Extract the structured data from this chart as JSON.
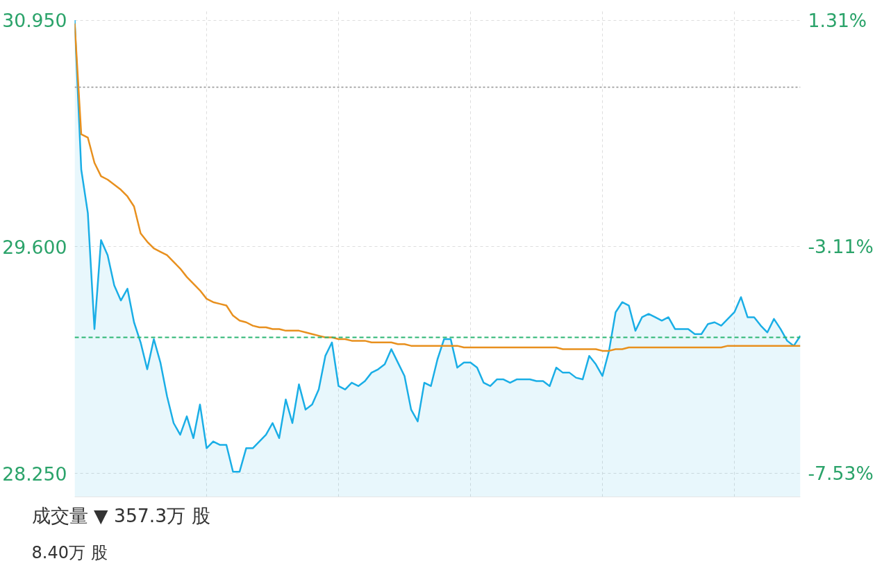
{
  "chart_data": [
    {
      "type": "line",
      "categories": [
        null,
        null,
        null,
        null,
        null,
        null,
        null,
        null,
        null,
        null,
        null,
        null,
        null,
        null,
        null,
        null,
        null,
        null,
        null,
        null,
        null,
        null,
        null,
        null,
        null,
        null,
        null,
        null,
        null,
        null,
        null,
        null,
        null,
        null,
        null,
        null,
        null,
        null,
        null,
        null,
        null,
        null,
        null,
        null,
        null,
        null,
        null,
        null,
        null,
        null,
        null,
        null,
        null,
        null,
        null,
        null,
        null,
        null,
        null,
        null,
        null,
        null,
        null,
        null,
        null,
        null,
        null,
        null,
        null,
        null,
        null,
        null,
        null,
        null,
        null,
        null,
        null,
        null,
        null,
        null,
        null,
        null,
        null,
        null,
        null,
        null,
        null,
        null,
        null,
        null,
        null,
        null,
        null,
        null,
        null,
        null,
        null,
        null,
        null,
        null,
        null,
        null,
        null,
        null,
        null,
        null,
        null,
        null,
        null,
        null,
        null
      ],
      "ylim": [
        28.11,
        31.01
      ],
      "yticks": [
        {
          "value": 30.95,
          "label": "30.950"
        },
        {
          "value": 29.6,
          "label": "29.600"
        },
        {
          "value": 28.25,
          "label": "28.250"
        }
      ],
      "y2lim": [
        -7.99,
        1.51
      ],
      "y2ticks": [
        {
          "value": 1.31,
          "label": "1.31%"
        },
        {
          "value": -3.11,
          "label": "-3.11%"
        },
        {
          "value": -7.53,
          "label": "-7.53%"
        }
      ],
      "grid": true,
      "ref_lines": [
        {
          "axis": "y",
          "value": 30.55,
          "label": null,
          "color": "#aaaaaa",
          "line_style": "dotted"
        },
        {
          "axis": "y",
          "value": 29.06,
          "label": null,
          "color": "#2bb673",
          "line_style": "dashed"
        }
      ],
      "series": [
        {
          "type": "area",
          "color": "#1aaee6",
          "values": [
            30.95,
            30.06,
            29.8,
            29.11,
            29.64,
            29.55,
            29.37,
            29.28,
            29.35,
            29.15,
            29.03,
            28.87,
            29.05,
            28.91,
            28.71,
            28.55,
            28.48,
            28.59,
            28.46,
            28.66,
            28.4,
            28.44,
            28.42,
            28.42,
            28.26,
            28.26,
            28.4,
            28.4,
            28.44,
            28.48,
            28.55,
            28.46,
            28.69,
            28.55,
            28.78,
            28.63,
            28.66,
            28.75,
            28.95,
            29.03,
            28.77,
            28.75,
            28.79,
            28.77,
            28.8,
            28.85,
            28.87,
            28.9,
            28.99,
            28.91,
            28.83,
            28.63,
            28.56,
            28.79,
            28.77,
            28.93,
            29.05,
            29.05,
            28.88,
            28.91,
            28.91,
            28.88,
            28.79,
            28.77,
            28.81,
            28.81,
            28.79,
            28.81,
            28.81,
            28.81,
            28.8,
            28.8,
            28.77,
            28.88,
            28.85,
            28.85,
            28.82,
            28.81,
            28.95,
            28.9,
            28.83,
            28.98,
            29.21,
            29.27,
            29.25,
            29.1,
            29.18,
            29.2,
            29.18,
            29.16,
            29.18,
            29.11,
            29.11,
            29.11,
            29.08,
            29.08,
            29.14,
            29.15,
            29.13,
            29.17,
            29.21,
            29.3,
            29.18,
            29.18,
            29.13,
            29.09,
            29.17,
            29.11,
            29.04,
            29.01,
            29.07
          ]
        },
        {
          "type": "line",
          "color": "#e8901e",
          "values": [
            30.93,
            30.27,
            30.25,
            30.1,
            30.02,
            30.0,
            29.97,
            29.94,
            29.9,
            29.84,
            29.68,
            29.63,
            29.59,
            29.57,
            29.55,
            29.51,
            29.47,
            29.42,
            29.38,
            29.34,
            29.29,
            29.27,
            29.26,
            29.25,
            29.19,
            29.16,
            29.15,
            29.13,
            29.12,
            29.12,
            29.11,
            29.11,
            29.1,
            29.1,
            29.1,
            29.09,
            29.08,
            29.07,
            29.06,
            29.06,
            29.05,
            29.05,
            29.04,
            29.04,
            29.04,
            29.03,
            29.03,
            29.03,
            29.03,
            29.02,
            29.02,
            29.01,
            29.01,
            29.01,
            29.01,
            29.01,
            29.01,
            29.01,
            29.01,
            29.0,
            29.0,
            29.0,
            29.0,
            29.0,
            29.0,
            29.0,
            29.0,
            29.0,
            29.0,
            29.0,
            29.0,
            29.0,
            29.0,
            29.0,
            28.99,
            28.99,
            28.99,
            28.99,
            28.99,
            28.99,
            28.98,
            28.98,
            28.99,
            28.99,
            29.0,
            29.0,
            29.0,
            29.0,
            29.0,
            29.0,
            29.0,
            29.0,
            29.0,
            29.0,
            29.0,
            29.0,
            29.0,
            29.0,
            29.0,
            29.01,
            29.01,
            29.01,
            29.01,
            29.01,
            29.01,
            29.01,
            29.01,
            29.01,
            29.01,
            29.01,
            29.01
          ]
        }
      ]
    },
    {
      "type": "other",
      "title": "成交量 ▼ 357.3万 股",
      "annotations": [
        "8.40万 股"
      ]
    }
  ]
}
